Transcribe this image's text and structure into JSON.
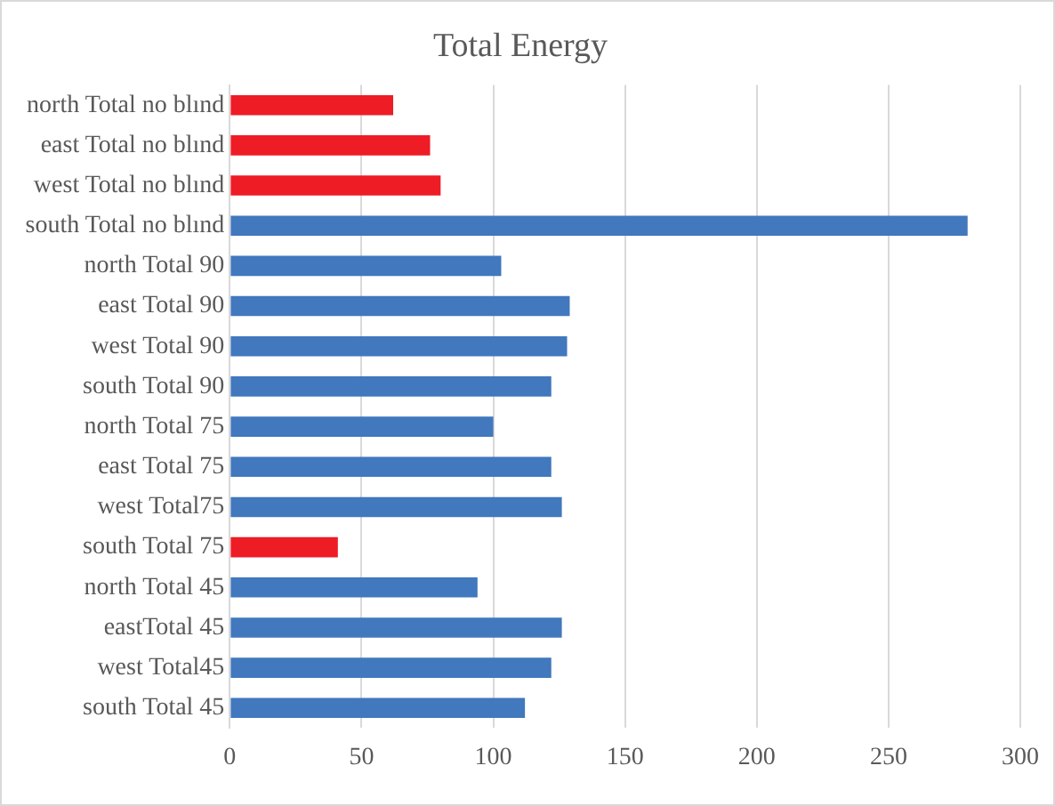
{
  "chart_data": {
    "type": "bar",
    "orientation": "horizontal",
    "title": "Total Energy",
    "categories": [
      "north Total no blınd",
      "east Total no blınd",
      "west Total no blınd",
      "south Total no blınd",
      "north Total 90",
      "east Total 90",
      "west Total 90",
      "south Total 90",
      "north Total 75",
      "east Total 75",
      "west Total75",
      "south Total 75",
      "north Total 45",
      "eastTotal 45",
      "west Total45",
      "south Total 45"
    ],
    "values": [
      62,
      76,
      80,
      280,
      103,
      129,
      128,
      122,
      100,
      122,
      126,
      41,
      94,
      126,
      122,
      112
    ],
    "colors": [
      "#ee1c25",
      "#ee1c25",
      "#ee1c25",
      "#4178be",
      "#4178be",
      "#4178be",
      "#4178be",
      "#4178be",
      "#4178be",
      "#4178be",
      "#4178be",
      "#ee1c25",
      "#4178be",
      "#4178be",
      "#4178be",
      "#4178be"
    ],
    "xlim": [
      0,
      300
    ],
    "xticks": [
      0,
      50,
      100,
      150,
      200,
      250,
      300
    ],
    "grid": "x",
    "legend": false
  }
}
